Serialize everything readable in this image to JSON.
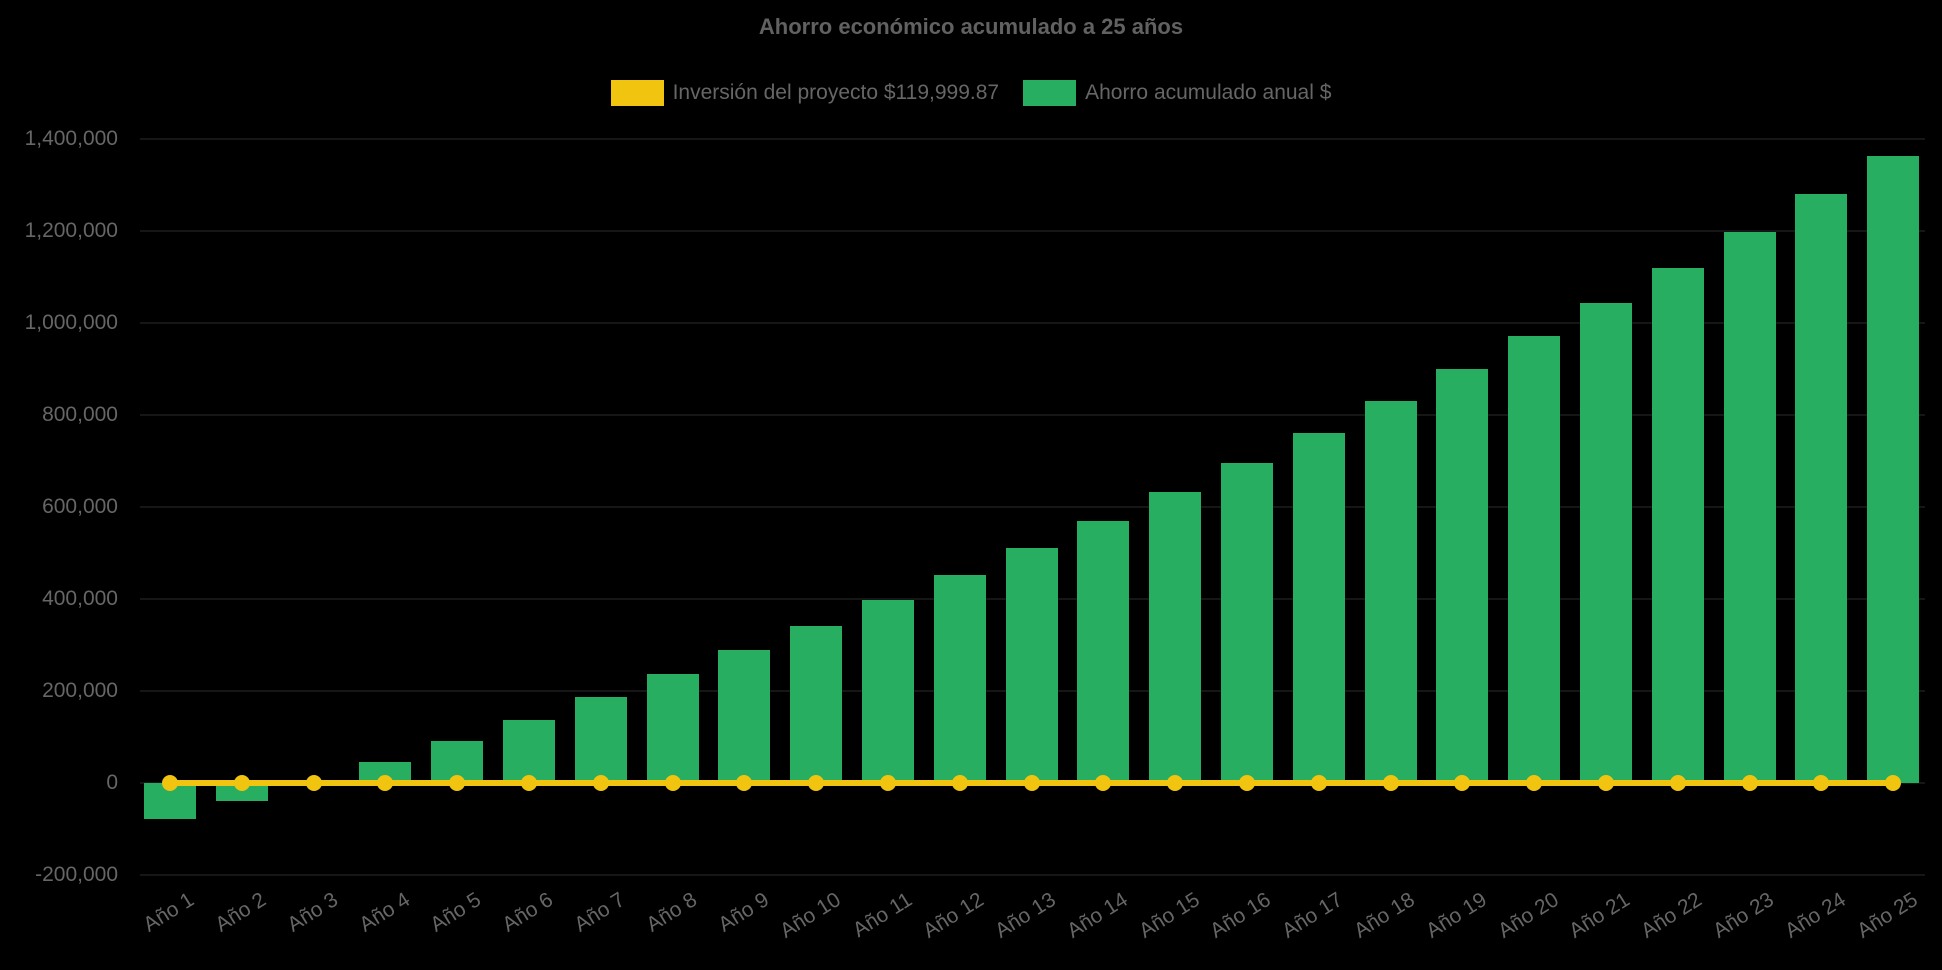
{
  "background": "#000000",
  "text_color": "#666666",
  "chart_data": {
    "type": "bar",
    "title": "Ahorro económico acumulado a 25 años",
    "categories": [
      "Año 1",
      "Año 2",
      "Año 3",
      "Año 4",
      "Año 5",
      "Año 6",
      "Año 7",
      "Año 8",
      "Año 9",
      "Año 10",
      "Año 11",
      "Año 12",
      "Año 13",
      "Año 14",
      "Año 15",
      "Año 16",
      "Año 17",
      "Año 18",
      "Año 19",
      "Año 20",
      "Año 21",
      "Año 22",
      "Año 23",
      "Año 24",
      "Año 25"
    ],
    "series": [
      {
        "name": "Inversión del proyecto $119,999.87",
        "type": "line",
        "color": "#f1c40f",
        "marker": "circle",
        "baseline_value": 0,
        "values": [
          0,
          0,
          0,
          0,
          0,
          0,
          0,
          0,
          0,
          0,
          0,
          0,
          0,
          0,
          0,
          0,
          0,
          0,
          0,
          0,
          0,
          0,
          0,
          0,
          0
        ]
      },
      {
        "name": "Ahorro acumulado anual $",
        "type": "bar",
        "color": "#27ae60",
        "values": [
          -78000,
          -40000,
          2000,
          46000,
          91000,
          137000,
          186000,
          237000,
          289000,
          341000,
          397000,
          453000,
          511000,
          570000,
          633000,
          696000,
          761000,
          830000,
          899000,
          971000,
          1044000,
          1120000,
          1198000,
          1280000,
          1363000
        ]
      }
    ],
    "ylim": [
      -200000,
      1400000
    ],
    "yticks": [
      -200000,
      0,
      200000,
      400000,
      600000,
      800000,
      1000000,
      1200000,
      1400000
    ],
    "ytick_labels": [
      "-200,000",
      "0",
      "200,000",
      "400,000",
      "600,000",
      "800,000",
      "1,000,000",
      "1,200,000",
      "1,400,000"
    ],
    "grid": false,
    "legend_position": "top"
  }
}
